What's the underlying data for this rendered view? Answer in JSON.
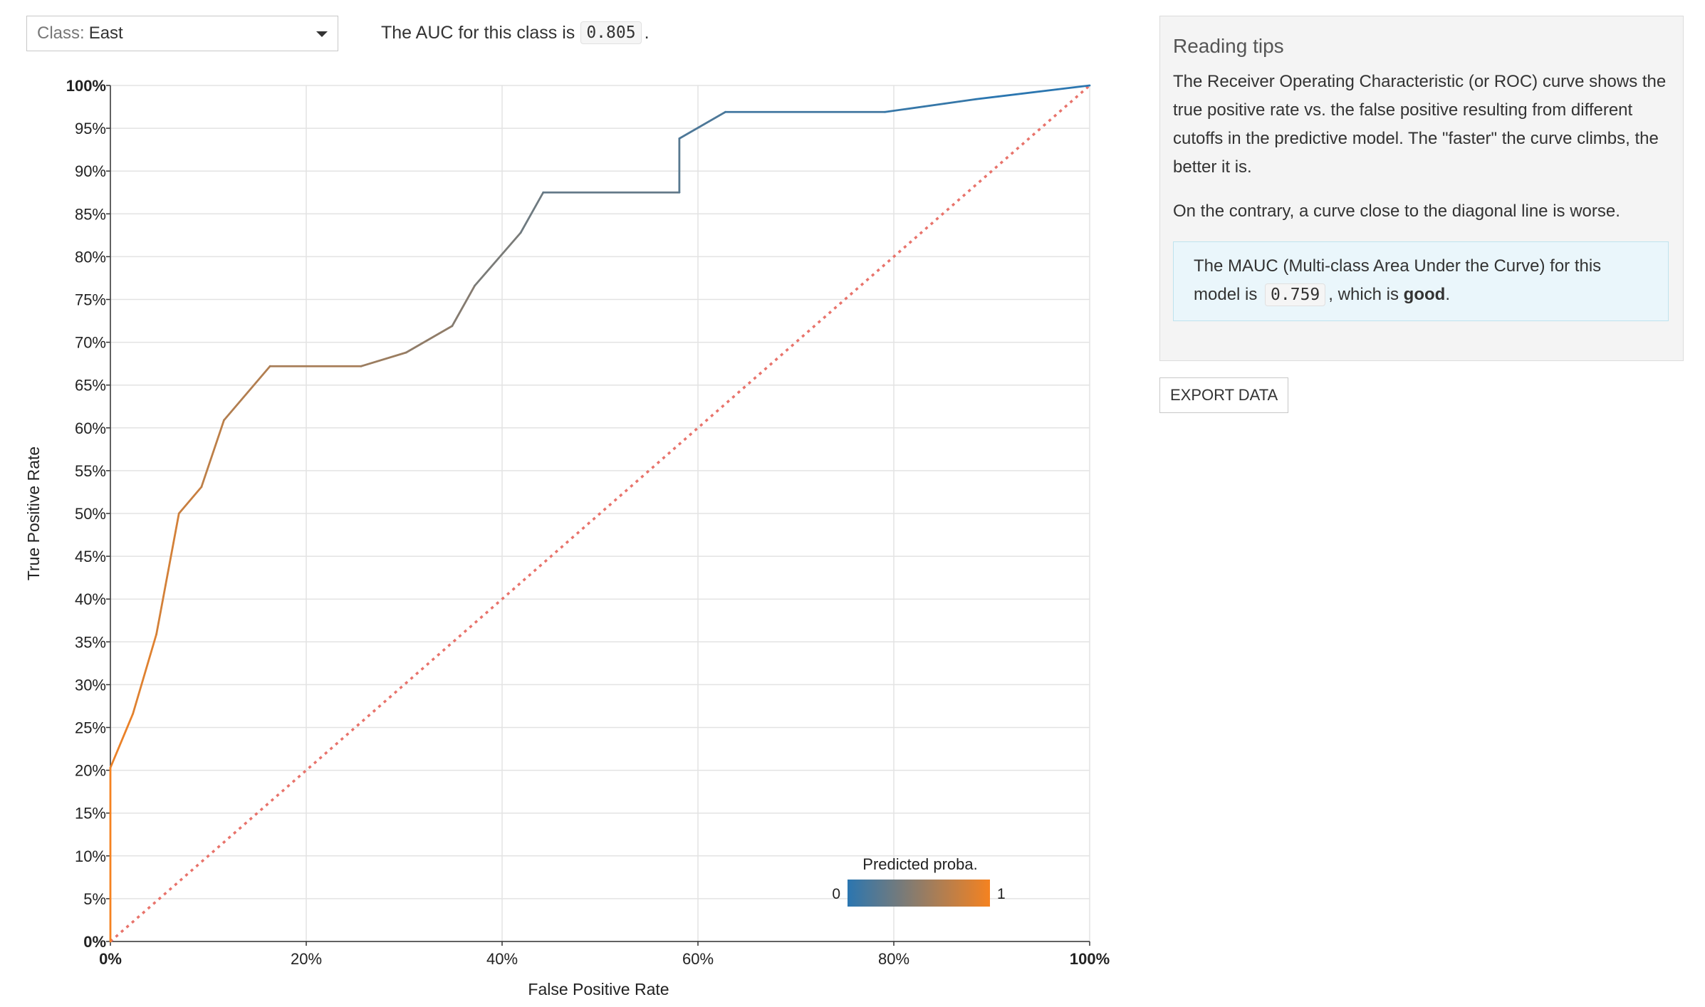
{
  "selector": {
    "prefix": "Class:",
    "value": "East"
  },
  "auc": {
    "text_before": "The AUC for this class is",
    "value": "0.805",
    "text_after": "."
  },
  "tips": {
    "title": "Reading tips",
    "p1": "The Receiver Operating Characteristic (or ROC) curve shows the true positive rate vs. the false positive resulting from different cutoffs in the predictive model. The \"faster\" the curve climbs, the better it is.",
    "p2": "On the contrary, a curve close to the diagonal line is worse.",
    "mauc_before": "The MAUC (Multi-class Area Under the Curve) for this model is",
    "mauc_value": "0.759",
    "mauc_middle": ", which is",
    "mauc_quality": "good",
    "mauc_after": "."
  },
  "export_label": "EXPORT DATA",
  "chart_data": {
    "type": "line",
    "xlabel": "False Positive Rate",
    "ylabel": "True Positive Rate",
    "xlim": [
      0,
      100
    ],
    "ylim": [
      0,
      100
    ],
    "x_ticks": [
      "0%",
      "20%",
      "40%",
      "60%",
      "80%",
      "100%"
    ],
    "y_ticks": [
      "0%",
      "5%",
      "10%",
      "15%",
      "20%",
      "25%",
      "30%",
      "35%",
      "40%",
      "45%",
      "50%",
      "55%",
      "60%",
      "65%",
      "70%",
      "75%",
      "80%",
      "85%",
      "90%",
      "95%",
      "100%"
    ],
    "grid": true,
    "series": [
      {
        "x": [
          0,
          0,
          2.3,
          4.7,
          7,
          9.3,
          11.6,
          16.3,
          25.6,
          30.2,
          34.9,
          37.2,
          41.9,
          44.2,
          58.1,
          58.1,
          62.8,
          79.1,
          88.4,
          100
        ],
        "y": [
          0,
          20.3,
          26.6,
          35.9,
          50,
          53.1,
          60.9,
          67.2,
          67.2,
          68.8,
          71.9,
          76.6,
          82.8,
          87.5,
          87.5,
          93.8,
          96.9,
          96.9,
          98.4,
          100
        ]
      }
    ],
    "diagonal": {
      "x": [
        0,
        100
      ],
      "y": [
        0,
        100
      ],
      "color": "#e8736b",
      "style": "dotted"
    },
    "color_legend": {
      "title": "Predicted proba.",
      "min_label": "0",
      "max_label": "1",
      "colors": [
        "#2b76b0",
        "#f58220"
      ],
      "placement": "bottom-right"
    }
  }
}
